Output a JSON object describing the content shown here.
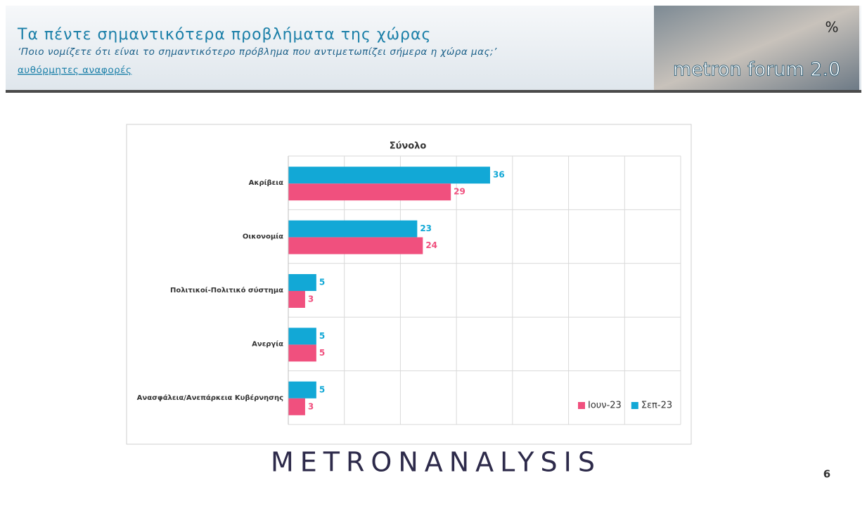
{
  "header": {
    "title": "Τα πέντε σημαντικότερα προβλήματα της χώρας",
    "subtitle": "‘Ποιο νομίζετε ότι είναι το σημαντικότερο πρόβλημα που αντιμετωπίζει σήμερα η χώρα μας;’",
    "note": "αυθόρμητες αναφορές",
    "logo": "metron forum 2.0",
    "unit": "%"
  },
  "chart_data": {
    "type": "hbar",
    "title": "Σύνολο",
    "categories": [
      "Ακρίβεια",
      "Οικονομία",
      "Πολιτικοί-Πολιτικό σύστημα",
      "Ανεργία",
      "Ανασφάλεια/Ανεπάρκεια Κυβέρνησης"
    ],
    "series": [
      {
        "name": "Ιουν-23",
        "color": "#f0507e",
        "values": [
          29,
          24,
          3,
          5,
          3
        ]
      },
      {
        "name": "Σεπ-23",
        "color": "#12a8d6",
        "values": [
          36,
          23,
          5,
          5,
          5
        ]
      }
    ],
    "xlim": [
      0,
      70
    ],
    "xticks": [
      0,
      10,
      20,
      30,
      40,
      50,
      60,
      70
    ],
    "grid": true,
    "legend": "bottom-right"
  },
  "footer": {
    "brand": "METRONANALYSIS",
    "page": "6"
  }
}
